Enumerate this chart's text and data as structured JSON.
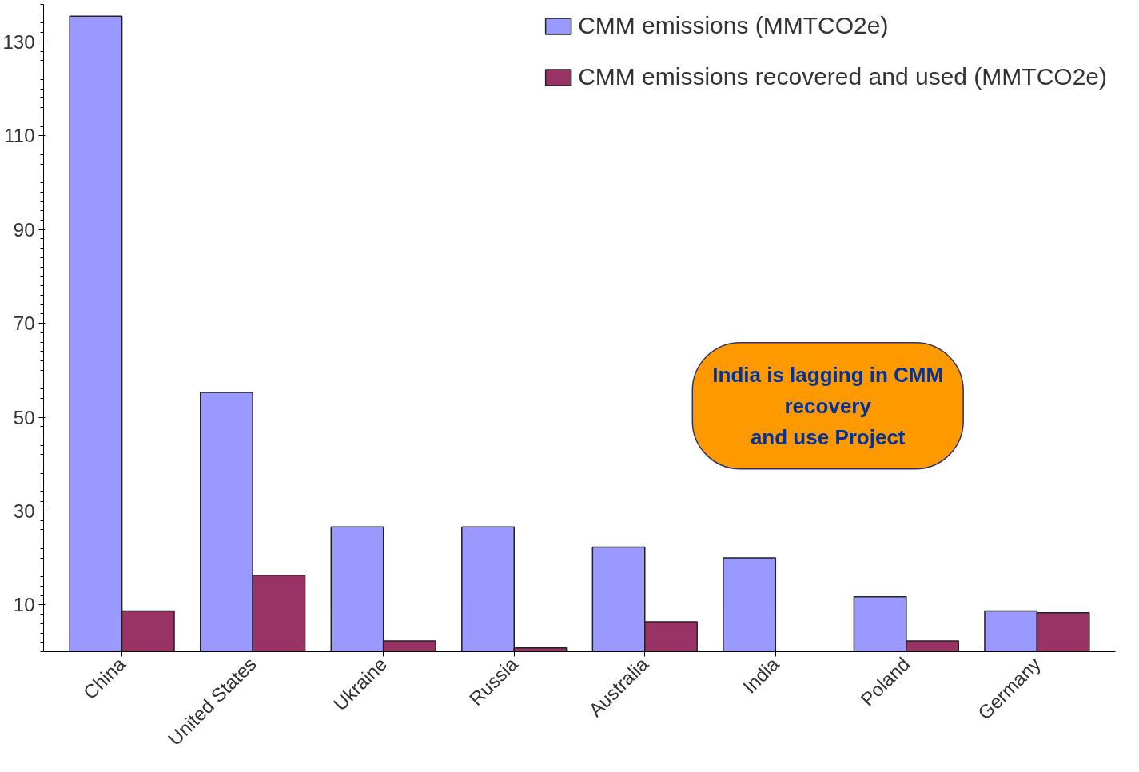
{
  "chart_data": {
    "type": "bar",
    "categories": [
      "China",
      "United States",
      "Ukraine",
      "Russia",
      "Australia",
      "India",
      "Poland",
      "Germany"
    ],
    "series": [
      {
        "name": "CMM emissions (MMTCO2e)",
        "color": "#9999ff",
        "values": [
          135.5,
          55.3,
          26.6,
          26.6,
          22.3,
          20,
          11.7,
          8.7
        ]
      },
      {
        "name": "CMM emissions recovered and used (MMTCO2e)",
        "color": "#993366",
        "values": [
          8.7,
          16.3,
          2.3,
          0.8,
          6.4,
          null,
          2.3,
          8.3
        ]
      }
    ],
    "ylim": [
      0,
      138
    ],
    "yticks": [
      10,
      30,
      50,
      70,
      90,
      110,
      130
    ],
    "grid": false,
    "legend": "top right",
    "annotations": [
      "India is lagging in CMM\nrecovery\nand use Project"
    ]
  }
}
